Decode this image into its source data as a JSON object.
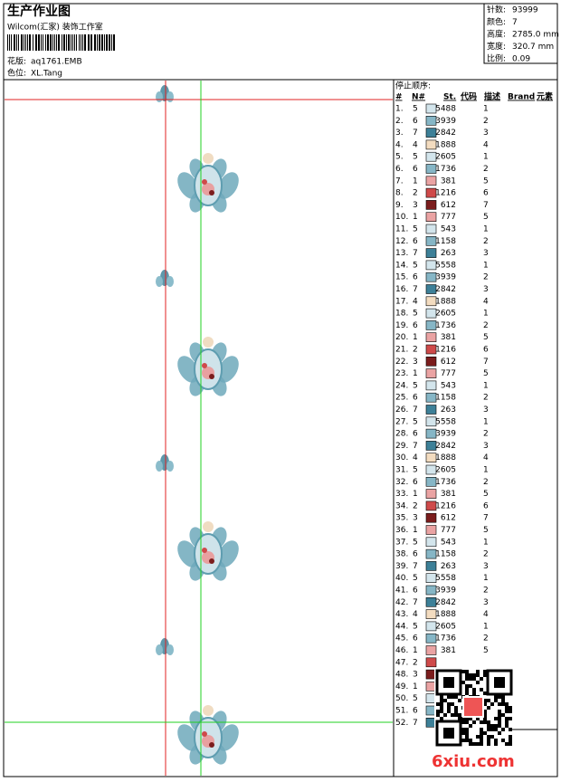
{
  "header": {
    "title": "生产作业图",
    "subtitle": "Wilcom(汇家) 装饰工作室",
    "design_label": "花版:",
    "design": "aq1761.EMB",
    "colorway_label": "色位:",
    "colorway": "XL.Tang"
  },
  "stats": [
    {
      "label": "针数:",
      "value": "93999"
    },
    {
      "label": "颜色:",
      "value": "7"
    },
    {
      "label": "高度:",
      "value": "2785.0 mm"
    },
    {
      "label": "宽度:",
      "value": "320.7 mm"
    },
    {
      "label": "比例:",
      "value": "0.09"
    }
  ],
  "table": {
    "title": "停止顺序:",
    "columns": [
      "#",
      "N#",
      "St.",
      "代码",
      "描述",
      "Brand",
      "元素"
    ],
    "needle_colors": {
      "1": "#eaa3a3",
      "2": "#cf4a4a",
      "3": "#7b1d1d",
      "4": "#f3dcc0",
      "5": "#d3e5ec",
      "6": "#86b6c6",
      "7": "#3d8098"
    },
    "rows": [
      {
        "index": "1.",
        "needle": "5",
        "stitches": "5488",
        "code": "1"
      },
      {
        "index": "2.",
        "needle": "6",
        "stitches": "3939",
        "code": "2"
      },
      {
        "index": "3.",
        "needle": "7",
        "stitches": "2842",
        "code": "3"
      },
      {
        "index": "4.",
        "needle": "4",
        "stitches": "1888",
        "code": "4"
      },
      {
        "index": "5.",
        "needle": "5",
        "stitches": "2605",
        "code": "1"
      },
      {
        "index": "6.",
        "needle": "6",
        "stitches": "1736",
        "code": "2"
      },
      {
        "index": "7.",
        "needle": "1",
        "stitches": "381",
        "code": "5"
      },
      {
        "index": "8.",
        "needle": "2",
        "stitches": "1216",
        "code": "6"
      },
      {
        "index": "9.",
        "needle": "3",
        "stitches": "612",
        "code": "7"
      },
      {
        "index": "10.",
        "needle": "1",
        "stitches": "777",
        "code": "5"
      },
      {
        "index": "11.",
        "needle": "5",
        "stitches": "543",
        "code": "1"
      },
      {
        "index": "12.",
        "needle": "6",
        "stitches": "1158",
        "code": "2"
      },
      {
        "index": "13.",
        "needle": "7",
        "stitches": "263",
        "code": "3"
      },
      {
        "index": "14.",
        "needle": "5",
        "stitches": "5558",
        "code": "1"
      },
      {
        "index": "15.",
        "needle": "6",
        "stitches": "3939",
        "code": "2"
      },
      {
        "index": "16.",
        "needle": "7",
        "stitches": "2842",
        "code": "3"
      },
      {
        "index": "17.",
        "needle": "4",
        "stitches": "1888",
        "code": "4"
      },
      {
        "index": "18.",
        "needle": "5",
        "stitches": "2605",
        "code": "1"
      },
      {
        "index": "19.",
        "needle": "6",
        "stitches": "1736",
        "code": "2"
      },
      {
        "index": "20.",
        "needle": "1",
        "stitches": "381",
        "code": "5"
      },
      {
        "index": "21.",
        "needle": "2",
        "stitches": "1216",
        "code": "6"
      },
      {
        "index": "22.",
        "needle": "3",
        "stitches": "612",
        "code": "7"
      },
      {
        "index": "23.",
        "needle": "1",
        "stitches": "777",
        "code": "5"
      },
      {
        "index": "24.",
        "needle": "5",
        "stitches": "543",
        "code": "1"
      },
      {
        "index": "25.",
        "needle": "6",
        "stitches": "1158",
        "code": "2"
      },
      {
        "index": "26.",
        "needle": "7",
        "stitches": "263",
        "code": "3"
      },
      {
        "index": "27.",
        "needle": "5",
        "stitches": "5558",
        "code": "1"
      },
      {
        "index": "28.",
        "needle": "6",
        "stitches": "3939",
        "code": "2"
      },
      {
        "index": "29.",
        "needle": "7",
        "stitches": "2842",
        "code": "3"
      },
      {
        "index": "30.",
        "needle": "4",
        "stitches": "1888",
        "code": "4"
      },
      {
        "index": "31.",
        "needle": "5",
        "stitches": "2605",
        "code": "1"
      },
      {
        "index": "32.",
        "needle": "6",
        "stitches": "1736",
        "code": "2"
      },
      {
        "index": "33.",
        "needle": "1",
        "stitches": "381",
        "code": "5"
      },
      {
        "index": "34.",
        "needle": "2",
        "stitches": "1216",
        "code": "6"
      },
      {
        "index": "35.",
        "needle": "3",
        "stitches": "612",
        "code": "7"
      },
      {
        "index": "36.",
        "needle": "1",
        "stitches": "777",
        "code": "5"
      },
      {
        "index": "37.",
        "needle": "5",
        "stitches": "543",
        "code": "1"
      },
      {
        "index": "38.",
        "needle": "6",
        "stitches": "1158",
        "code": "2"
      },
      {
        "index": "39.",
        "needle": "7",
        "stitches": "263",
        "code": "3"
      },
      {
        "index": "40.",
        "needle": "5",
        "stitches": "5558",
        "code": "1"
      },
      {
        "index": "41.",
        "needle": "6",
        "stitches": "3939",
        "code": "2"
      },
      {
        "index": "42.",
        "needle": "7",
        "stitches": "2842",
        "code": "3"
      },
      {
        "index": "43.",
        "needle": "4",
        "stitches": "1888",
        "code": "4"
      },
      {
        "index": "44.",
        "needle": "5",
        "stitches": "2605",
        "code": "1"
      },
      {
        "index": "45.",
        "needle": "6",
        "stitches": "1736",
        "code": "2"
      },
      {
        "index": "46.",
        "needle": "1",
        "stitches": "381",
        "code": "5"
      },
      {
        "index": "47.",
        "needle": "2"
      },
      {
        "index": "48.",
        "needle": "3"
      },
      {
        "index": "49.",
        "needle": "1"
      },
      {
        "index": "50.",
        "needle": "5"
      },
      {
        "index": "51.",
        "needle": "6"
      },
      {
        "index": "52.",
        "needle": "7"
      }
    ]
  },
  "watermark": "6xiu.com"
}
